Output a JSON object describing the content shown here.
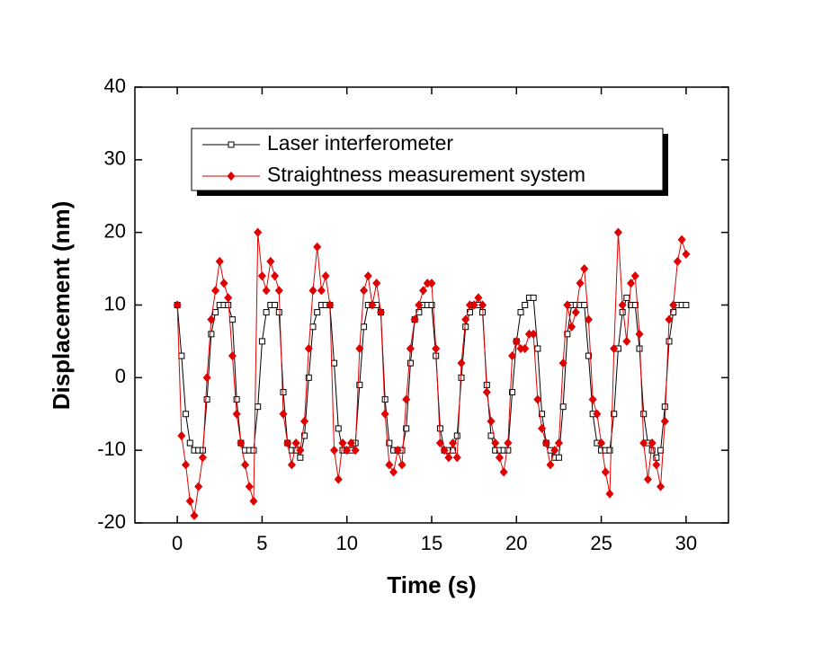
{
  "chart_data": {
    "type": "line",
    "xlabel": "Time (s)",
    "ylabel": "Displacement (nm)",
    "x": [
      0,
      0.25,
      0.5,
      0.75,
      1,
      1.25,
      1.5,
      1.75,
      2,
      2.25,
      2.5,
      2.75,
      3,
      3.25,
      3.5,
      3.75,
      4,
      4.25,
      4.5,
      4.75,
      5,
      5.25,
      5.5,
      5.75,
      6,
      6.25,
      6.5,
      6.75,
      7,
      7.25,
      7.5,
      7.75,
      8,
      8.25,
      8.5,
      8.75,
      9,
      9.25,
      9.5,
      9.75,
      10,
      10.25,
      10.5,
      10.75,
      11,
      11.25,
      11.5,
      11.75,
      12,
      12.25,
      12.5,
      12.75,
      13,
      13.25,
      13.5,
      13.75,
      14,
      14.25,
      14.5,
      14.75,
      15,
      15.25,
      15.5,
      15.75,
      16,
      16.25,
      16.5,
      16.75,
      17,
      17.25,
      17.5,
      17.75,
      18,
      18.25,
      18.5,
      18.75,
      19,
      19.25,
      19.5,
      19.75,
      20,
      20.25,
      20.5,
      20.75,
      21,
      21.25,
      21.5,
      21.75,
      22,
      22.25,
      22.5,
      22.75,
      23,
      23.25,
      23.5,
      23.75,
      24,
      24.25,
      24.5,
      24.75,
      25,
      25.25,
      25.5,
      25.75,
      26,
      26.25,
      26.5,
      26.75,
      27,
      27.25,
      27.5,
      27.75,
      28,
      28.25,
      28.5,
      28.75,
      29,
      29.25,
      29.5,
      29.75,
      30
    ],
    "series": [
      {
        "name": "Laser interferometer",
        "color": "#000000",
        "marker": "open-square",
        "values": [
          10,
          3,
          -5,
          -9,
          -10,
          -10,
          -10,
          -3,
          6,
          9,
          10,
          10,
          10,
          8,
          -3,
          -9,
          -10,
          -10,
          -10,
          -4,
          5,
          9,
          10,
          10,
          9,
          -2,
          -9,
          -10,
          -10,
          -11,
          -8,
          0,
          7,
          9,
          10,
          10,
          10,
          2,
          -7,
          -10,
          -10,
          -10,
          -9,
          -1,
          7,
          10,
          10,
          10,
          9,
          -3,
          -9,
          -10,
          -10,
          -10,
          -7,
          2,
          8,
          9,
          10,
          10,
          10,
          3,
          -7,
          -10,
          -10,
          -10,
          -8,
          0,
          7,
          9,
          10,
          10,
          9,
          -1,
          -8,
          -10,
          -10,
          -10,
          -10,
          -2,
          5,
          9,
          10,
          11,
          11,
          4,
          -5,
          -9,
          -10,
          -11,
          -11,
          -4,
          6,
          10,
          10,
          10,
          10,
          3,
          -5,
          -9,
          -10,
          -10,
          -10,
          -5,
          4,
          9,
          11,
          10,
          10,
          4,
          -5,
          -9,
          -10,
          -11,
          -10,
          -4,
          5,
          9,
          10,
          10,
          10
        ]
      },
      {
        "name": "Straightness measurement system",
        "color": "#e00000",
        "marker": "filled-diamond",
        "values": [
          10,
          -8,
          -12,
          -17,
          -19,
          -15,
          -11,
          0,
          8,
          12,
          16,
          13,
          11,
          3,
          -5,
          -9,
          -12,
          -15,
          -17,
          20,
          14,
          12,
          16,
          14,
          12,
          -5,
          -9,
          -12,
          -9,
          -10,
          -6,
          4,
          12,
          18,
          12,
          14,
          10,
          -10,
          -14,
          -9,
          -10,
          -9,
          -10,
          4,
          12,
          14,
          10,
          13,
          9,
          -5,
          -12,
          -13,
          -10,
          -12,
          -3,
          4,
          8,
          10,
          12,
          13,
          13,
          4,
          -9,
          -10,
          -11,
          -9,
          -11,
          2,
          8,
          10,
          10,
          11,
          10,
          -2,
          -6,
          -9,
          -11,
          -13,
          -9,
          3,
          5,
          4,
          4,
          6,
          6,
          -3,
          -7,
          -9,
          -12,
          -10,
          -9,
          2,
          10,
          7,
          9,
          13,
          15,
          8,
          -3,
          -5,
          -9,
          -13,
          -16,
          4,
          20,
          10,
          5,
          13,
          14,
          6,
          -9,
          -14,
          -9,
          -12,
          -15,
          -6,
          8,
          10,
          16,
          19,
          17
        ]
      }
    ],
    "xlim": [
      -2.5,
      32.5
    ],
    "xticks": [
      0,
      5,
      10,
      15,
      20,
      25,
      30
    ],
    "ylim": [
      -20,
      40
    ],
    "yticks": [
      -20,
      -10,
      0,
      10,
      20,
      30,
      40
    ],
    "legend": "upper left",
    "grid": false
  }
}
